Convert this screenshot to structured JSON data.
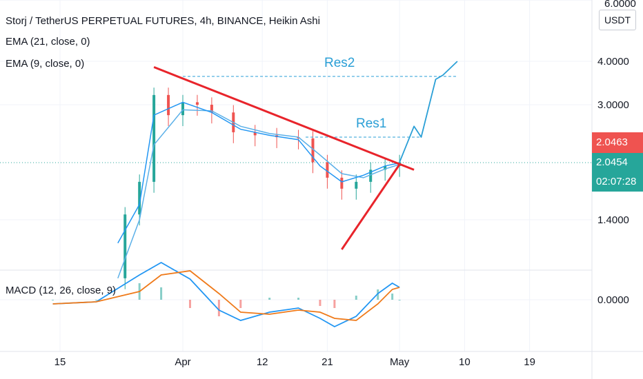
{
  "title": "Storj / TetherUS PERPETUAL FUTURES, 4h, BINANCE, Heikin Ashi",
  "indicators": {
    "ema21": "EMA (21, close, 0)",
    "ema9": "EMA (9, close, 0)",
    "macd": "MACD (12, 26, close, 9)"
  },
  "price_axis": {
    "unit": "USDT",
    "top_label": "6.0000",
    "ticks": [
      "4.0000",
      "3.0000",
      "1.4000"
    ],
    "macd_tick": "0.0000"
  },
  "price_tags": {
    "last_red": "2.0463",
    "last_green": "2.0454",
    "countdown": "02:07:28"
  },
  "colors": {
    "trendline": "#e8242b",
    "projection": "#2a9fd6",
    "ema_fast": "#2196f3",
    "macd_signal": "#ef7a1a",
    "bull": "#26a69a",
    "bear": "#ef5350",
    "tag_red": "#ef5350",
    "tag_green": "#26a69a"
  },
  "chart_data": {
    "type": "line",
    "subtype": "heikin-ashi candlestick",
    "x_ticks": [
      "15",
      "Apr",
      "12",
      "21",
      "May",
      "10",
      "19"
    ],
    "y_scale": "log",
    "annotations": [
      "Res2",
      "Res1"
    ],
    "resistance_levels": {
      "Res2": 3.62,
      "Res1": 2.42
    },
    "descending_trendline": [
      {
        "date": "2021-03-28",
        "price": 3.85
      },
      {
        "date": "2021-05-03",
        "price": 1.95
      }
    ],
    "ascending_trendline": [
      {
        "date": "2021-04-23",
        "price": 1.15
      },
      {
        "date": "2021-05-01",
        "price": 2.02
      }
    ],
    "projection_path": [
      {
        "date": "2021-05-01",
        "price": 2.05
      },
      {
        "date": "2021-05-03",
        "price": 2.6
      },
      {
        "date": "2021-05-04",
        "price": 2.42
      },
      {
        "date": "2021-05-06",
        "price": 3.55
      },
      {
        "date": "2021-05-07",
        "price": 3.65
      },
      {
        "date": "2021-05-09",
        "price": 4.0
      }
    ],
    "price_series": [
      {
        "date": "2021-03-22",
        "close": 0.95
      },
      {
        "date": "2021-03-24",
        "close": 1.45
      },
      {
        "date": "2021-03-26",
        "close": 1.8
      },
      {
        "date": "2021-03-28",
        "close": 3.2
      },
      {
        "date": "2021-03-30",
        "close": 2.8
      },
      {
        "date": "2021-04-01",
        "close": 3.05
      },
      {
        "date": "2021-04-03",
        "close": 3.0
      },
      {
        "date": "2021-04-05",
        "close": 2.85
      },
      {
        "date": "2021-04-08",
        "close": 2.5
      },
      {
        "date": "2021-04-11",
        "close": 2.45
      },
      {
        "date": "2021-04-14",
        "close": 2.42
      },
      {
        "date": "2021-04-17",
        "close": 2.4
      },
      {
        "date": "2021-04-19",
        "close": 2.05
      },
      {
        "date": "2021-04-21",
        "close": 1.85
      },
      {
        "date": "2021-04-23",
        "close": 1.72
      },
      {
        "date": "2021-04-25",
        "close": 1.8
      },
      {
        "date": "2021-04-27",
        "close": 1.95
      },
      {
        "date": "2021-04-29",
        "close": 2.0
      },
      {
        "date": "2021-05-01",
        "close": 2.05
      }
    ],
    "ema9_series": [
      {
        "date": "2021-03-23",
        "value": 1.2
      },
      {
        "date": "2021-03-26",
        "value": 1.55
      },
      {
        "date": "2021-03-28",
        "value": 2.8
      },
      {
        "date": "2021-04-01",
        "value": 3.05
      },
      {
        "date": "2021-04-05",
        "value": 2.85
      },
      {
        "date": "2021-04-09",
        "value": 2.55
      },
      {
        "date": "2021-04-13",
        "value": 2.45
      },
      {
        "date": "2021-04-17",
        "value": 2.38
      },
      {
        "date": "2021-04-20",
        "value": 2.0
      },
      {
        "date": "2021-04-23",
        "value": 1.8
      },
      {
        "date": "2021-04-26",
        "value": 1.88
      },
      {
        "date": "2021-04-29",
        "value": 2.0
      },
      {
        "date": "2021-05-01",
        "value": 2.04
      }
    ],
    "ema21_series": [
      {
        "date": "2021-03-23",
        "value": 0.95
      },
      {
        "date": "2021-03-26",
        "value": 1.4
      },
      {
        "date": "2021-03-28",
        "value": 2.3
      },
      {
        "date": "2021-04-01",
        "value": 2.9
      },
      {
        "date": "2021-04-05",
        "value": 2.88
      },
      {
        "date": "2021-04-09",
        "value": 2.6
      },
      {
        "date": "2021-04-13",
        "value": 2.48
      },
      {
        "date": "2021-04-17",
        "value": 2.42
      },
      {
        "date": "2021-04-20",
        "value": 2.15
      },
      {
        "date": "2021-04-23",
        "value": 1.9
      },
      {
        "date": "2021-04-26",
        "value": 1.85
      },
      {
        "date": "2021-04-29",
        "value": 1.96
      },
      {
        "date": "2021-05-01",
        "value": 2.02
      }
    ],
    "macd_series": [
      {
        "date": "2021-03-14",
        "macd": -0.02,
        "signal": -0.02
      },
      {
        "date": "2021-03-20",
        "macd": -0.01,
        "signal": -0.01
      },
      {
        "date": "2021-03-26",
        "macd": 0.12,
        "signal": 0.04
      },
      {
        "date": "2021-03-29",
        "macd": 0.18,
        "signal": 0.12
      },
      {
        "date": "2021-04-02",
        "macd": 0.1,
        "signal": 0.14
      },
      {
        "date": "2021-04-06",
        "macd": -0.05,
        "signal": 0.03
      },
      {
        "date": "2021-04-09",
        "macd": -0.1,
        "signal": -0.06
      },
      {
        "date": "2021-04-13",
        "macd": -0.06,
        "signal": -0.07
      },
      {
        "date": "2021-04-17",
        "macd": -0.04,
        "signal": -0.05
      },
      {
        "date": "2021-04-20",
        "macd": -0.09,
        "signal": -0.06
      },
      {
        "date": "2021-04-22",
        "macd": -0.13,
        "signal": -0.09
      },
      {
        "date": "2021-04-25",
        "macd": -0.08,
        "signal": -0.1
      },
      {
        "date": "2021-04-28",
        "macd": 0.03,
        "signal": -0.02
      },
      {
        "date": "2021-04-30",
        "macd": 0.08,
        "signal": 0.05
      },
      {
        "date": "2021-05-01",
        "macd": 0.06,
        "signal": 0.06
      }
    ]
  }
}
